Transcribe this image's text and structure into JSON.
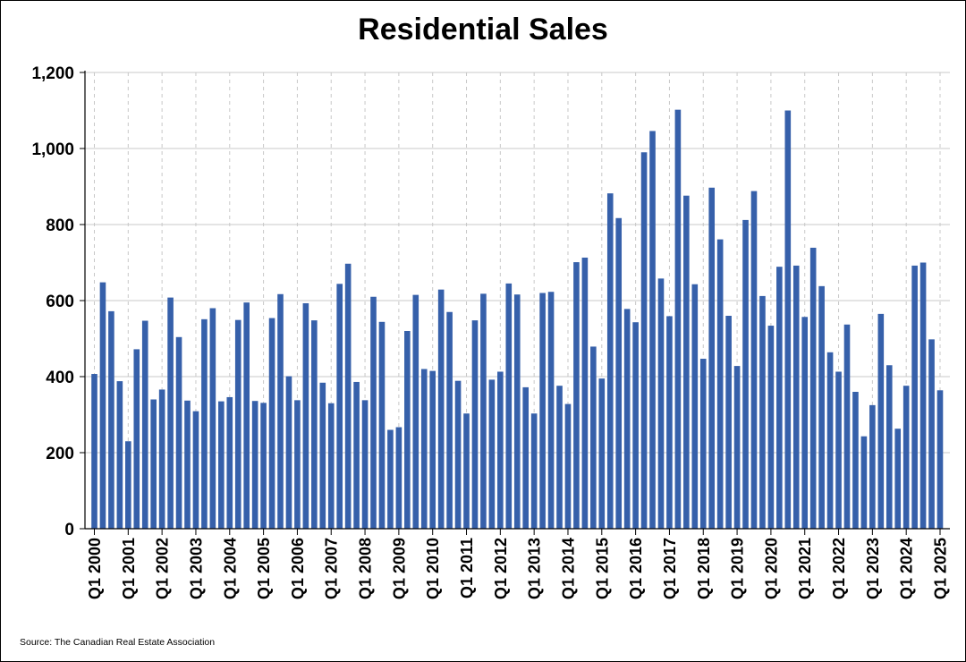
{
  "chart_data": {
    "type": "bar",
    "title": "Residential Sales",
    "xlabel": "",
    "ylabel": "",
    "ylim": [
      0,
      1200
    ],
    "yticks": [
      "0",
      "200",
      "400",
      "600",
      "800",
      "1,000",
      "1,200"
    ],
    "ytick_values": [
      0,
      200,
      400,
      600,
      800,
      1000,
      1200
    ],
    "grid": true,
    "legend": "none",
    "bar_color": "#3660AA",
    "tick_labels": [
      "Q1 2000",
      "Q1 2001",
      "Q1 2002",
      "Q1 2003",
      "Q1 2004",
      "Q1 2005",
      "Q1 2006",
      "Q1 2007",
      "Q1 2008",
      "Q1 2009",
      "Q1 2010",
      "Q1 2011",
      "Q1 2012",
      "Q1 2013",
      "Q1 2014",
      "Q1 2015",
      "Q1 2016",
      "Q1 2017",
      "Q1 2018",
      "Q1 2019",
      "Q1 2020",
      "Q1 2021",
      "Q1 2022",
      "Q1 2023",
      "Q1 2024",
      "Q1 2025"
    ],
    "categories": [
      "Q1 2000",
      "Q2 2000",
      "Q3 2000",
      "Q4 2000",
      "Q1 2001",
      "Q2 2001",
      "Q3 2001",
      "Q4 2001",
      "Q1 2002",
      "Q2 2002",
      "Q3 2002",
      "Q4 2002",
      "Q1 2003",
      "Q2 2003",
      "Q3 2003",
      "Q4 2003",
      "Q1 2004",
      "Q2 2004",
      "Q3 2004",
      "Q4 2004",
      "Q1 2005",
      "Q2 2005",
      "Q3 2005",
      "Q4 2005",
      "Q1 2006",
      "Q2 2006",
      "Q3 2006",
      "Q4 2006",
      "Q1 2007",
      "Q2 2007",
      "Q3 2007",
      "Q4 2007",
      "Q1 2008",
      "Q2 2008",
      "Q3 2008",
      "Q4 2008",
      "Q1 2009",
      "Q2 2009",
      "Q3 2009",
      "Q4 2009",
      "Q1 2010",
      "Q2 2010",
      "Q3 2010",
      "Q4 2010",
      "Q1 2011",
      "Q2 2011",
      "Q3 2011",
      "Q4 2011",
      "Q1 2012",
      "Q2 2012",
      "Q3 2012",
      "Q4 2012",
      "Q1 2013",
      "Q2 2013",
      "Q3 2013",
      "Q4 2013",
      "Q1 2014",
      "Q2 2014",
      "Q3 2014",
      "Q4 2014",
      "Q1 2015",
      "Q2 2015",
      "Q3 2015",
      "Q4 2015",
      "Q1 2016",
      "Q2 2016",
      "Q3 2016",
      "Q4 2016",
      "Q1 2017",
      "Q2 2017",
      "Q3 2017",
      "Q4 2017",
      "Q1 2018",
      "Q2 2018",
      "Q3 2018",
      "Q4 2018",
      "Q1 2019",
      "Q2 2019",
      "Q3 2019",
      "Q4 2019",
      "Q1 2020",
      "Q2 2020",
      "Q3 2020",
      "Q4 2020",
      "Q1 2021",
      "Q2 2021",
      "Q3 2021",
      "Q4 2021",
      "Q1 2022",
      "Q2 2022",
      "Q3 2022",
      "Q4 2022",
      "Q1 2023",
      "Q2 2023",
      "Q3 2023",
      "Q4 2023",
      "Q1 2024",
      "Q2 2024",
      "Q3 2024",
      "Q4 2024",
      "Q1 2025"
    ],
    "values": [
      407,
      648,
      572,
      388,
      230,
      472,
      547,
      340,
      366,
      608,
      504,
      337,
      309,
      551,
      580,
      335,
      346,
      549,
      595,
      336,
      331,
      554,
      617,
      401,
      338,
      593,
      548,
      384,
      330,
      644,
      697,
      386,
      338,
      610,
      544,
      260,
      267,
      520,
      615,
      420,
      415,
      629,
      570,
      389,
      303,
      548,
      618,
      392,
      413,
      645,
      616,
      372,
      303,
      620,
      623,
      376,
      328,
      701,
      713,
      479,
      395,
      882,
      817,
      578,
      543,
      990,
      1046,
      658,
      559,
      1102,
      876,
      643,
      447,
      897,
      761,
      560,
      428,
      812,
      888,
      612,
      534,
      689,
      1100,
      692,
      557,
      739,
      638,
      464,
      413,
      537,
      360,
      243,
      325,
      565,
      430,
      263,
      376,
      692,
      700,
      498,
      364
    ]
  },
  "source_note": "Source: The Canadian Real Estate Association"
}
